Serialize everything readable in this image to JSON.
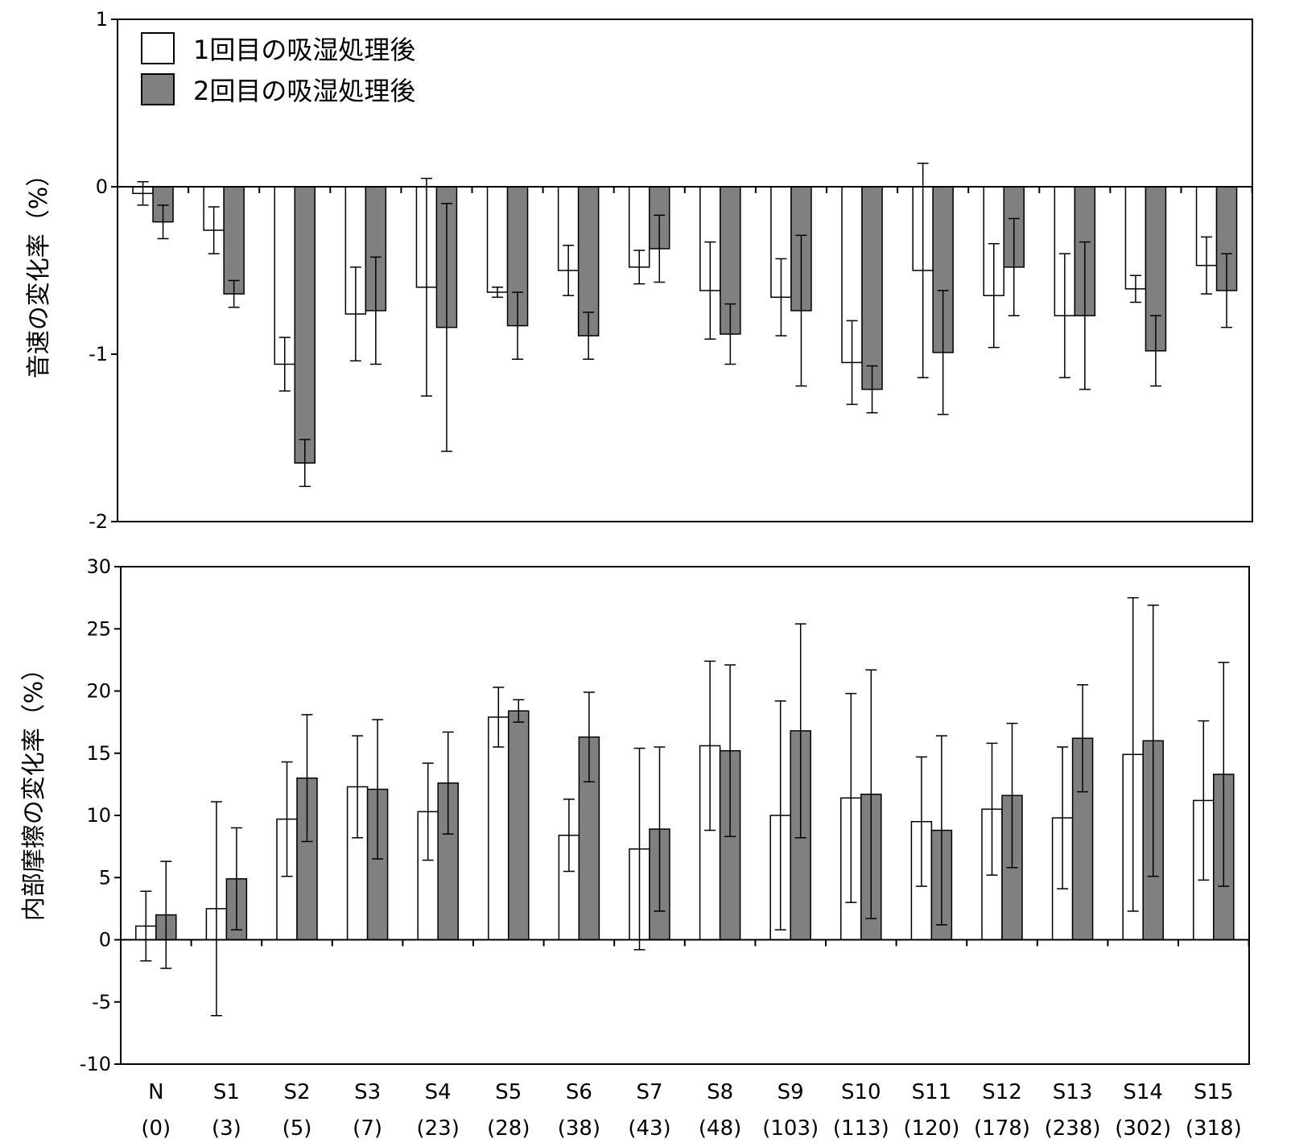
{
  "colors": {
    "series1_fill": "#ffffff",
    "series2_fill": "#808080",
    "stroke": "#000000"
  },
  "legend": {
    "series1": "1回目の吸湿処理後",
    "series2": "2回目の吸湿処理後"
  },
  "categories": [
    "N",
    "S1",
    "S2",
    "S3",
    "S4",
    "S5",
    "S6",
    "S7",
    "S8",
    "S9",
    "S10",
    "S11",
    "S12",
    "S13",
    "S14",
    "S15"
  ],
  "category_sublabels": [
    "(0)",
    "(3)",
    "(5)",
    "(7)",
    "(23)",
    "(28)",
    "(38)",
    "(43)",
    "(48)",
    "(103)",
    "(113)",
    "(120)",
    "(178)",
    "(238)",
    "(302)",
    "(318)"
  ],
  "chart_data": [
    {
      "type": "bar",
      "ylabel": "音速の変化率（%）",
      "ylim": [
        -2,
        1
      ],
      "yticks": [
        1,
        0,
        -1,
        -2
      ],
      "ytick_labels": [
        "1",
        "0",
        "-1",
        "-2"
      ],
      "legend_position": "top-left",
      "series": [
        {
          "name": "1回目の吸湿処理後",
          "values": [
            -0.04,
            -0.26,
            -1.06,
            -0.76,
            -0.6,
            -0.63,
            -0.5,
            -0.48,
            -0.62,
            -0.66,
            -1.05,
            -0.5,
            -0.65,
            -0.77,
            -0.61,
            -0.47
          ],
          "errors": [
            0.07,
            0.14,
            0.16,
            0.28,
            0.65,
            0.03,
            0.15,
            0.1,
            0.29,
            0.23,
            0.25,
            0.64,
            0.31,
            0.37,
            0.08,
            0.17
          ]
        },
        {
          "name": "2回目の吸湿処理後",
          "values": [
            -0.21,
            -0.64,
            -1.65,
            -0.74,
            -0.84,
            -0.83,
            -0.89,
            -0.37,
            -0.88,
            -0.74,
            -1.21,
            -0.99,
            -0.48,
            -0.77,
            -0.98,
            -0.62
          ],
          "errors": [
            0.1,
            0.08,
            0.14,
            0.32,
            0.74,
            0.2,
            0.14,
            0.2,
            0.18,
            0.45,
            0.14,
            0.37,
            0.29,
            0.44,
            0.21,
            0.22
          ]
        }
      ]
    },
    {
      "type": "bar",
      "ylabel": "内部摩擦の変化率（%）",
      "ylim": [
        -10,
        30
      ],
      "yticks": [
        30,
        25,
        20,
        15,
        10,
        5,
        0,
        -5,
        -10
      ],
      "ytick_labels": [
        "30",
        "25",
        "20",
        "15",
        "10",
        "5",
        "0",
        "-5",
        "-10"
      ],
      "series": [
        {
          "name": "1回目の吸湿処理後",
          "values": [
            1.1,
            2.5,
            9.7,
            12.3,
            10.3,
            17.9,
            8.4,
            7.3,
            15.6,
            10.0,
            11.4,
            9.5,
            10.5,
            9.8,
            14.9,
            11.2
          ],
          "errors": [
            2.8,
            8.6,
            4.6,
            4.1,
            3.9,
            2.4,
            2.9,
            8.1,
            6.8,
            9.2,
            8.4,
            5.2,
            5.3,
            5.7,
            12.6,
            6.4
          ]
        },
        {
          "name": "2回目の吸湿処理後",
          "values": [
            2.0,
            4.9,
            13.0,
            12.1,
            12.6,
            18.4,
            16.3,
            8.9,
            15.2,
            16.8,
            11.7,
            8.8,
            11.6,
            16.2,
            16.0,
            13.3
          ],
          "errors": [
            4.3,
            4.1,
            5.1,
            5.6,
            4.1,
            0.9,
            3.6,
            6.6,
            6.9,
            8.6,
            10.0,
            7.6,
            5.8,
            4.3,
            10.9,
            9.0
          ]
        }
      ]
    }
  ]
}
